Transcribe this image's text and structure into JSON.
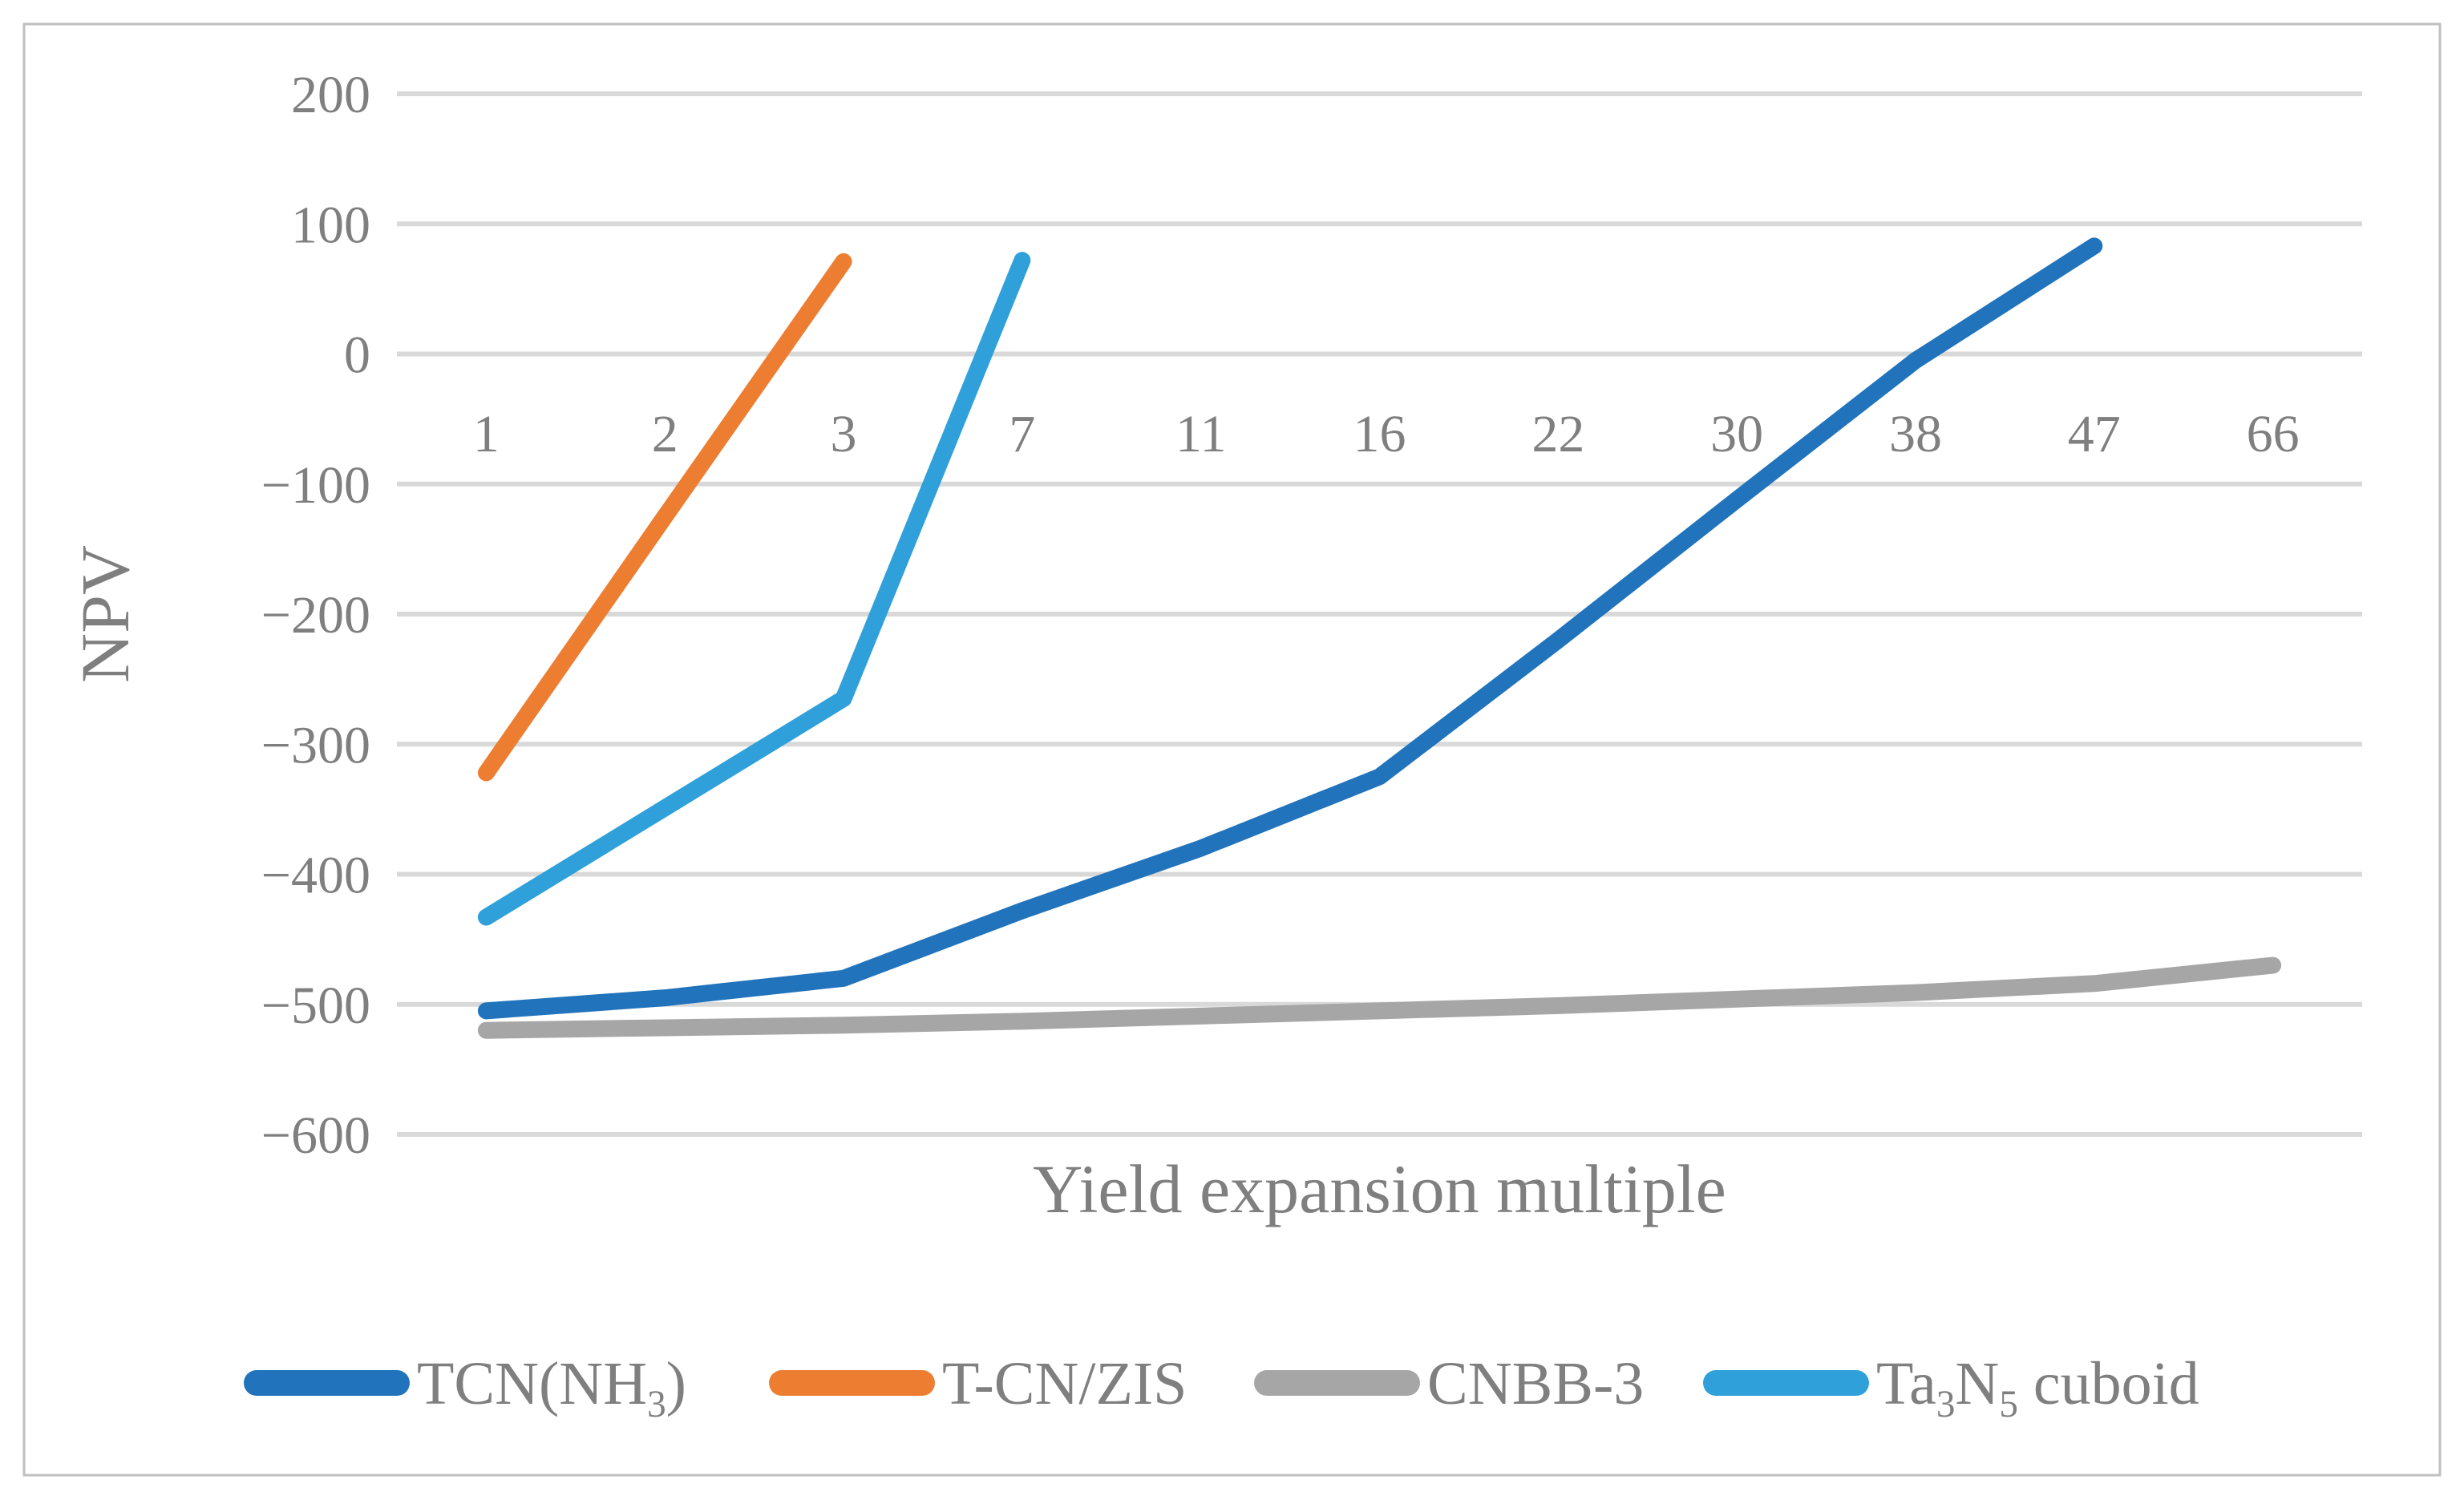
{
  "figure": {
    "background": "#FFFFFF",
    "border_color": "#BFBFBF"
  },
  "chart_data": {
    "type": "line",
    "title": "",
    "xlabel": "Yield expansion multiple",
    "ylabel": "NPV",
    "categories": [
      "1",
      "2",
      "3",
      "7",
      "11",
      "16",
      "22",
      "30",
      "38",
      "47",
      "66"
    ],
    "y_ticks": [
      200,
      100,
      0,
      -100,
      -200,
      -300,
      -400,
      -500,
      -600
    ],
    "ylim": [
      -600,
      200
    ],
    "grid": true,
    "gridline_color": "#D9D9D9",
    "text_color": "#7F7F7F",
    "legend_position": "bottom",
    "series": [
      {
        "id": "tcn-nh3",
        "name": "TCN(NH3)",
        "label_parts": [
          {
            "t": "TCN(NH"
          },
          {
            "t": "3",
            "sub": true
          },
          {
            "t": ")"
          }
        ],
        "color": "#2173BC",
        "values": [
          -505,
          -495,
          -480,
          -428,
          -380,
          -325,
          -220,
          -112,
          -5,
          83,
          null
        ]
      },
      {
        "id": "t-cn-zis",
        "name": "T-CN/ZIS",
        "label_parts": [
          {
            "t": "T-CN/ZIS"
          }
        ],
        "color": "#ED7D31",
        "values": [
          -322,
          -125,
          71,
          null,
          null,
          null,
          null,
          null,
          null,
          null,
          null
        ]
      },
      {
        "id": "cnbb-3",
        "name": "CNBB-3",
        "label_parts": [
          {
            "t": "CNBB-3"
          }
        ],
        "color": "#A6A6A6",
        "values": [
          -520,
          -518,
          -516,
          -513,
          -509,
          -505,
          -501,
          -496,
          -491,
          -484,
          -470
        ]
      },
      {
        "id": "ta3n5-cuboid",
        "name": "Ta3N5 cuboid",
        "label_parts": [
          {
            "t": "Ta"
          },
          {
            "t": "3",
            "sub": true
          },
          {
            "t": "N"
          },
          {
            "t": "5",
            "sub": true
          },
          {
            "t": " cuboid"
          }
        ],
        "color": "#2FA0DA",
        "values": [
          -433,
          -349,
          -265,
          72,
          null,
          null,
          null,
          null,
          null,
          null,
          null
        ]
      }
    ]
  }
}
